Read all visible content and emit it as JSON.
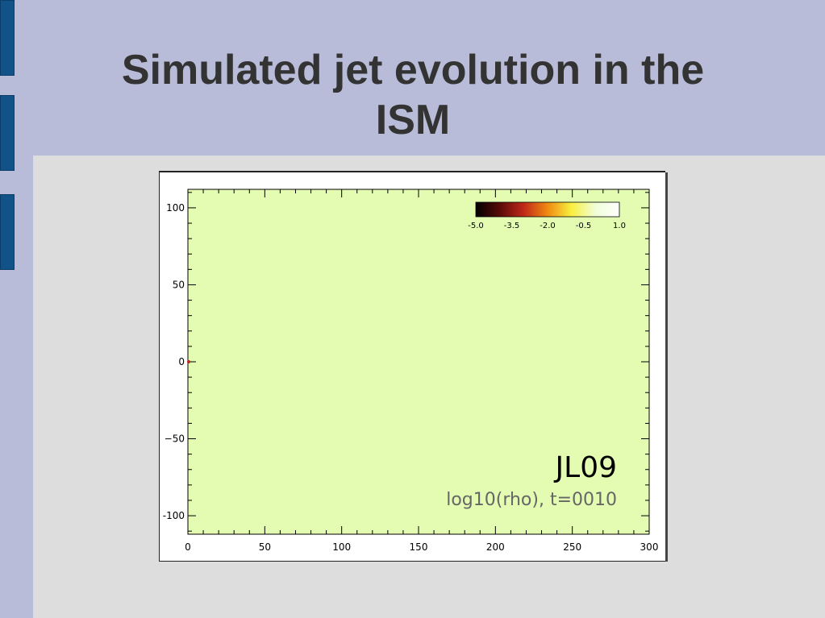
{
  "slide": {
    "title_line1": "Simulated jet evolution in the",
    "title_line2": "ISM"
  },
  "plot": {
    "run_label": "JL09",
    "caption": "log10(rho), t=0010",
    "field_color": "#e3fcb2",
    "colorbar": {
      "tick_labels": [
        "-5.0",
        "-3.5",
        "-2.0",
        "-0.5",
        "1.0"
      ],
      "tick_values": [
        -5.0,
        -3.5,
        -2.0,
        -0.5,
        1.0
      ],
      "range": [
        -5.0,
        1.0
      ],
      "colors": [
        "#000000",
        "#5a0a08",
        "#c0281a",
        "#f08a10",
        "#f8f040",
        "#f0ffd8",
        "#ffffff"
      ]
    }
  },
  "chart_data": {
    "type": "heatmap",
    "title": "",
    "xlabel": "",
    "ylabel": "",
    "xlim": [
      0,
      300
    ],
    "ylim": [
      -112,
      112
    ],
    "x_ticks": [
      0,
      50,
      100,
      150,
      200,
      250,
      300
    ],
    "y_ticks": [
      100,
      50,
      0,
      -50,
      -100
    ],
    "x_tick_labels": [
      "0",
      "50",
      "100",
      "150",
      "200",
      "250",
      "300"
    ],
    "y_tick_labels": [
      "100",
      "50",
      "0",
      "−50",
      "-100"
    ],
    "jet_source": {
      "x": 0,
      "y": 0
    }
  }
}
